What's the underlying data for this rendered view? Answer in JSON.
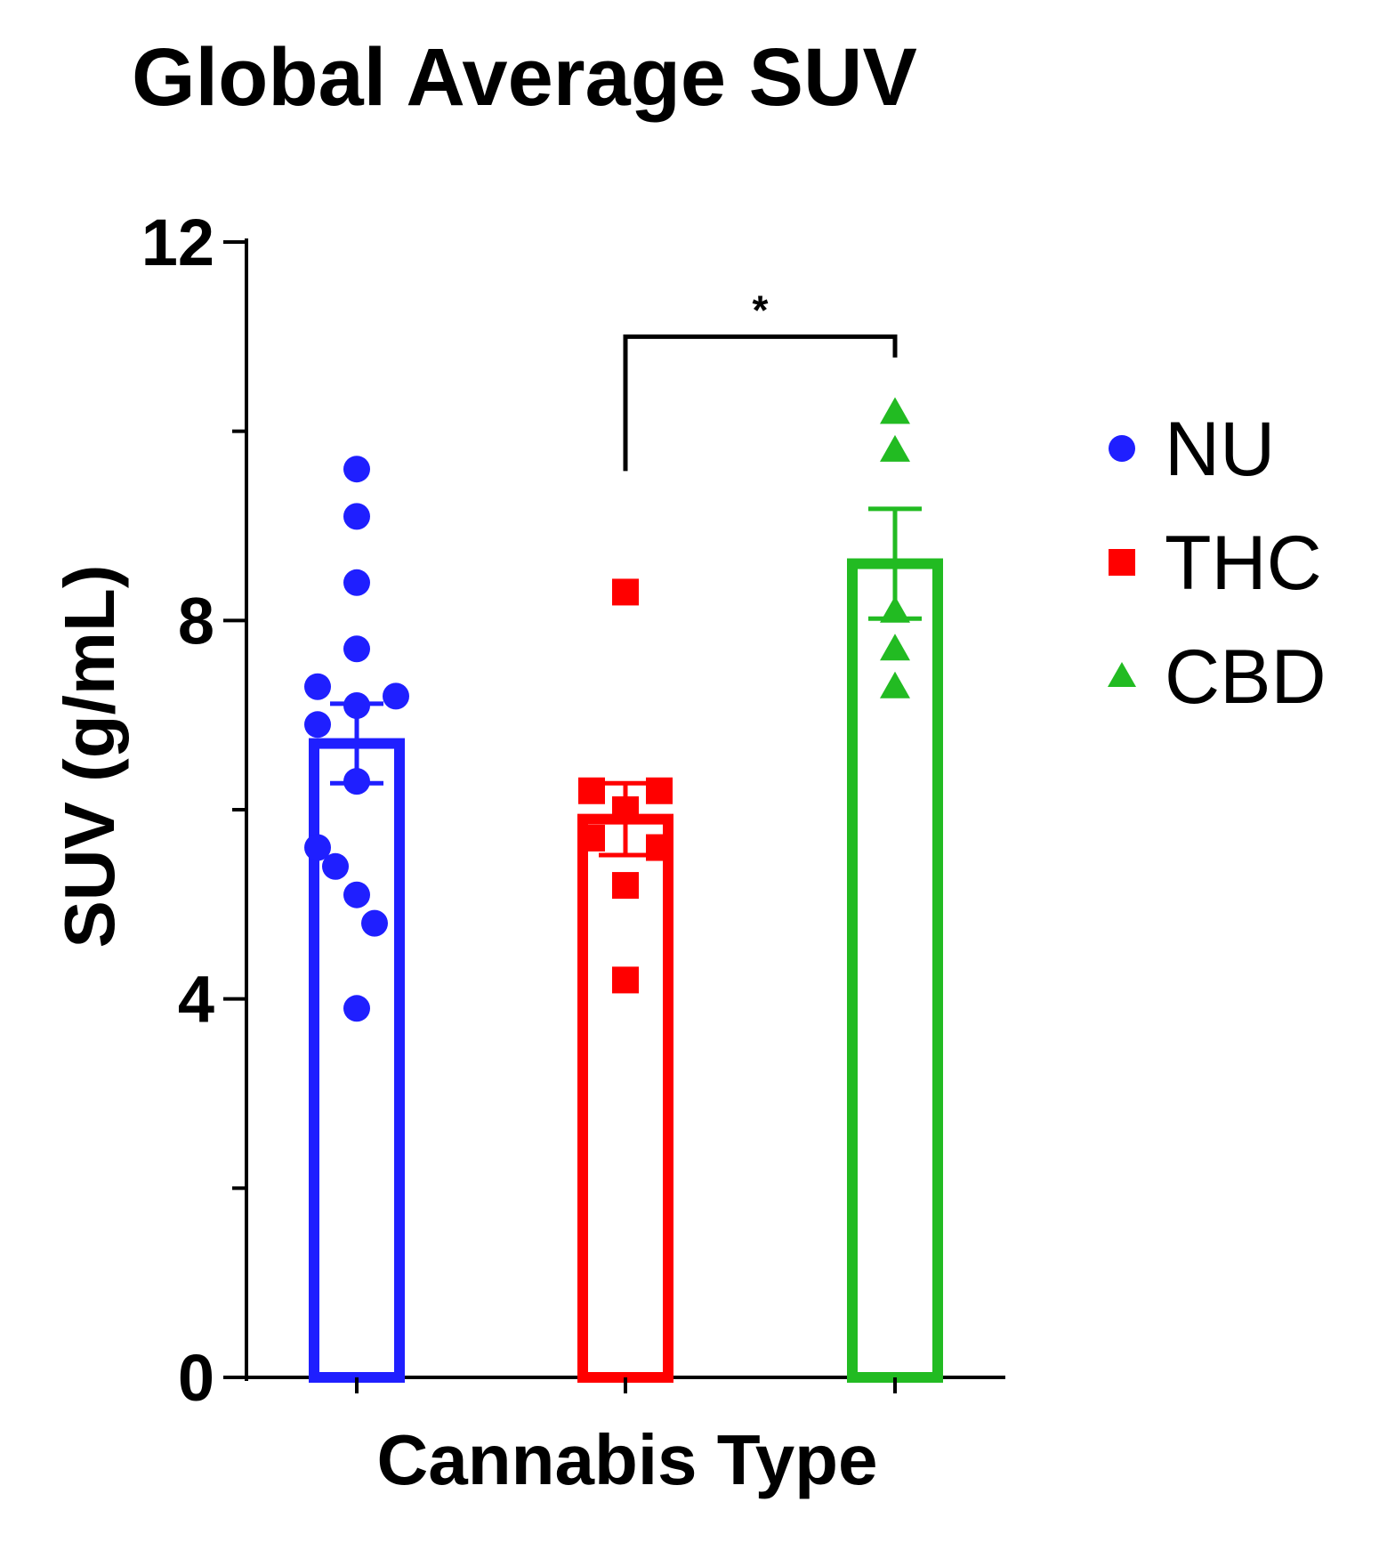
{
  "chart_data": {
    "type": "bar",
    "title": "Global Average SUV",
    "xlabel": "Cannabis Type",
    "ylabel": "SUV (g/mL)",
    "ylim": [
      0,
      12
    ],
    "yticks": [
      0,
      4,
      8,
      12
    ],
    "grid": false,
    "legend_position": "right",
    "categories": [
      "NU",
      "THC",
      "CBD"
    ],
    "series": [
      {
        "name": "NU",
        "color": "#1f1fff",
        "marker": "circle",
        "mean": 6.7,
        "sem": 0.42,
        "points": [
          9.6,
          9.1,
          8.4,
          7.7,
          7.3,
          7.2,
          7.1,
          6.9,
          6.3,
          5.6,
          5.4,
          5.1,
          4.8,
          3.9
        ]
      },
      {
        "name": "THC",
        "color": "#ff0000",
        "marker": "square",
        "mean": 5.9,
        "sem": 0.38,
        "points": [
          8.3,
          6.2,
          6.2,
          6.0,
          5.7,
          5.6,
          5.2,
          4.2
        ]
      },
      {
        "name": "CBD",
        "color": "#22bb22",
        "marker": "triangle",
        "mean": 8.6,
        "sem": 0.58,
        "points": [
          10.2,
          9.8,
          8.1,
          7.7,
          7.3
        ]
      }
    ],
    "annotations": [
      {
        "type": "significance",
        "from": "THC",
        "to": "CBD",
        "label": "*",
        "y": 11.0
      }
    ]
  }
}
